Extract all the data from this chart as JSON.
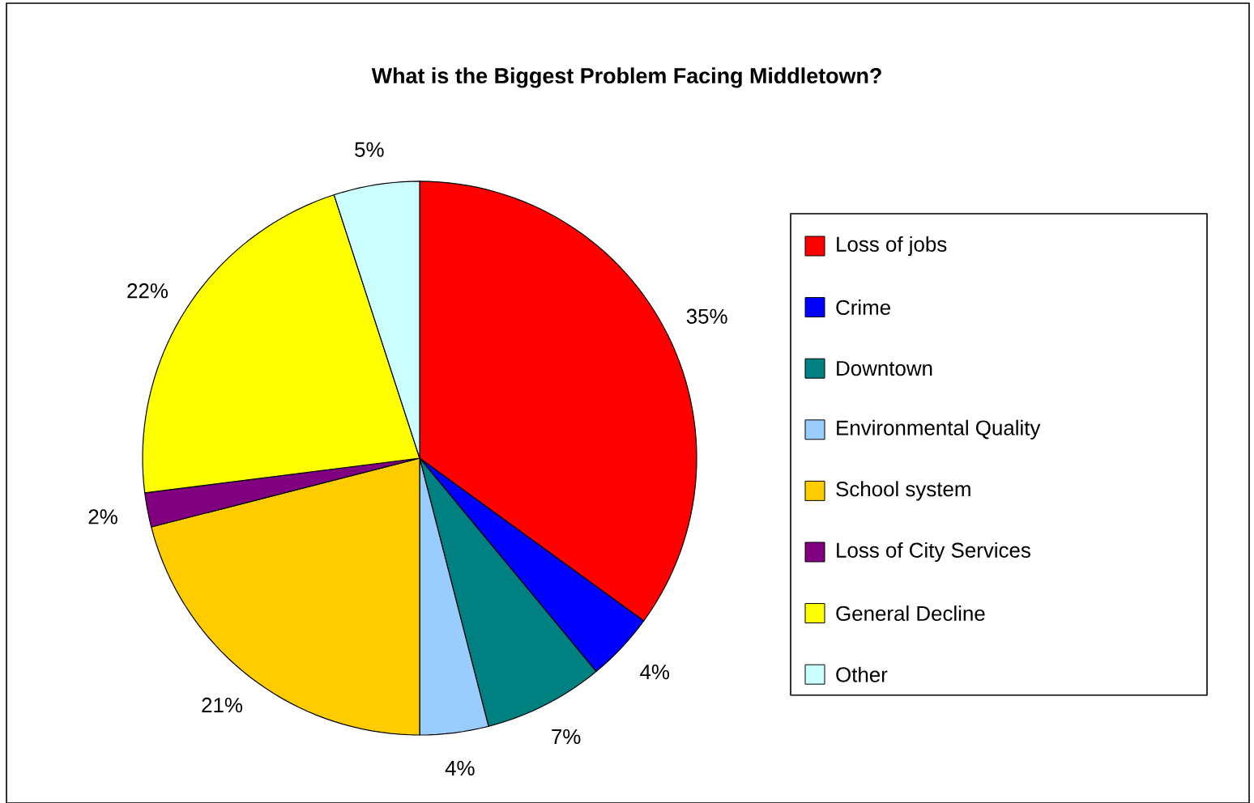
{
  "chart_data": {
    "type": "pie",
    "title": "What is the Biggest Problem Facing Middletown?",
    "categories": [
      "Loss of jobs",
      "Crime",
      "Downtown",
      "Environmental Quality",
      "School system",
      "Loss of City Services",
      "General Decline",
      "Other"
    ],
    "values": [
      35,
      4,
      7,
      4,
      21,
      2,
      22,
      5
    ],
    "value_labels": [
      "35%",
      "4%",
      "7%",
      "4%",
      "21%",
      "2%",
      "22%",
      "5%"
    ],
    "colors": [
      "#ff0000",
      "#0000ff",
      "#008080",
      "#99ccff",
      "#ffcc00",
      "#800080",
      "#ffff00",
      "#ccffff"
    ],
    "legend": "right"
  }
}
